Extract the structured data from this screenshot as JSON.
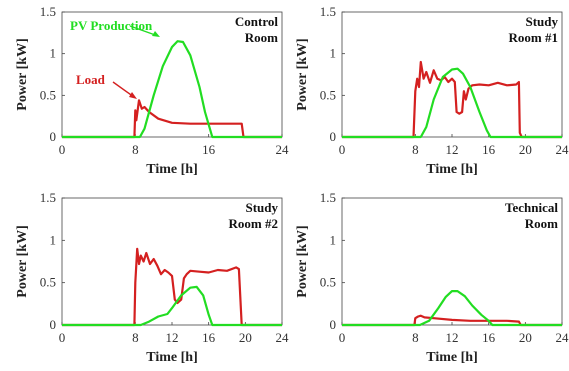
{
  "chart_data": [
    {
      "type": "line",
      "title": [
        "Control",
        "Room"
      ],
      "xlabel": "Time [h]",
      "ylabel": "Power [kW]",
      "xlim": [
        0,
        24
      ],
      "ylim": [
        0,
        1.5
      ],
      "xticks": [
        "0",
        "8",
        "16",
        "24"
      ],
      "yticks": [
        "0",
        "0.5",
        "1",
        "1.5"
      ],
      "annotations": [
        {
          "text": "PV Production",
          "color": "#22dd22",
          "series": "pv"
        },
        {
          "text": "Load",
          "color": "#d42020",
          "series": "load"
        }
      ],
      "series": [
        {
          "key": "load",
          "color": "#d42020",
          "x": [
            0,
            7.9,
            8.0,
            8.1,
            8.4,
            8.7,
            9.0,
            9.5,
            10.5,
            12,
            14,
            16,
            18,
            19.6,
            19.8,
            24
          ],
          "y": [
            0,
            0,
            0.32,
            0.2,
            0.44,
            0.34,
            0.36,
            0.3,
            0.22,
            0.17,
            0.16,
            0.16,
            0.16,
            0.16,
            0,
            0
          ]
        },
        {
          "key": "pv",
          "color": "#22dd22",
          "x": [
            0,
            8.5,
            9,
            10,
            11,
            12,
            12.6,
            13.2,
            14,
            15,
            15.6,
            16.4,
            24
          ],
          "y": [
            0,
            0,
            0.1,
            0.5,
            0.85,
            1.08,
            1.15,
            1.14,
            0.98,
            0.6,
            0.3,
            0,
            0
          ]
        }
      ]
    },
    {
      "type": "line",
      "title": [
        "Study",
        "Room #1"
      ],
      "xlabel": "Time [h]",
      "ylabel": "Power [kW]",
      "xlim": [
        0,
        24
      ],
      "ylim": [
        0,
        1.5
      ],
      "xticks": [
        "0",
        "8",
        "12",
        "16",
        "20",
        "24"
      ],
      "yticks": [
        "0",
        "0.5",
        "1",
        "1.5"
      ],
      "series": [
        {
          "key": "load",
          "color": "#d42020",
          "x": [
            0,
            7.8,
            8.0,
            8.2,
            8.4,
            8.6,
            8.9,
            9.2,
            9.6,
            10,
            10.4,
            10.8,
            11.2,
            11.6,
            12,
            12.3,
            12.5,
            12.8,
            13.1,
            13.3,
            13.5,
            13.8,
            14.2,
            15,
            16,
            17,
            18,
            19,
            19.3,
            19.4,
            19.6,
            24
          ],
          "y": [
            0,
            0,
            0.55,
            0.7,
            0.6,
            0.9,
            0.7,
            0.78,
            0.65,
            0.8,
            0.7,
            0.68,
            0.72,
            0.66,
            0.7,
            0.66,
            0.3,
            0.28,
            0.3,
            0.55,
            0.45,
            0.58,
            0.62,
            0.63,
            0.62,
            0.65,
            0.62,
            0.63,
            0.66,
            0.05,
            0,
            0
          ]
        },
        {
          "key": "pv",
          "color": "#22dd22",
          "x": [
            0,
            8.6,
            9.2,
            10,
            11,
            12,
            12.6,
            13.2,
            14,
            15,
            15.8,
            16.2,
            24
          ],
          "y": [
            0,
            0,
            0.12,
            0.45,
            0.72,
            0.81,
            0.82,
            0.76,
            0.6,
            0.3,
            0.08,
            0,
            0
          ]
        }
      ]
    },
    {
      "type": "line",
      "title": [
        "Study",
        "Room #2"
      ],
      "xlabel": "Time [h]",
      "ylabel": "Power [kW]",
      "xlim": [
        0,
        24
      ],
      "ylim": [
        0,
        1.5
      ],
      "xticks": [
        "0",
        "8",
        "12",
        "16",
        "20",
        "24"
      ],
      "yticks": [
        "0",
        "0.5",
        "1",
        "1.5"
      ],
      "series": [
        {
          "key": "load",
          "color": "#d42020",
          "x": [
            0,
            7.9,
            8.0,
            8.2,
            8.4,
            8.6,
            8.9,
            9.2,
            9.6,
            10,
            10.4,
            10.8,
            11.2,
            11.6,
            12,
            12.3,
            12.6,
            13.0,
            13.3,
            13.6,
            14,
            15,
            16,
            17,
            18,
            19,
            19.3,
            19.6,
            24
          ],
          "y": [
            0,
            0,
            0.5,
            0.9,
            0.72,
            0.82,
            0.75,
            0.85,
            0.72,
            0.78,
            0.7,
            0.6,
            0.65,
            0.62,
            0.58,
            0.3,
            0.26,
            0.3,
            0.55,
            0.6,
            0.64,
            0.63,
            0.62,
            0.65,
            0.64,
            0.68,
            0.66,
            0,
            0
          ]
        },
        {
          "key": "pv",
          "color": "#22dd22",
          "x": [
            0,
            8.6,
            9.5,
            10.5,
            11.5,
            12,
            13,
            14,
            14.7,
            15.4,
            16.0,
            16.4,
            24
          ],
          "y": [
            0,
            0,
            0.04,
            0.1,
            0.13,
            0.2,
            0.35,
            0.44,
            0.45,
            0.35,
            0.12,
            0,
            0
          ]
        }
      ]
    },
    {
      "type": "line",
      "title": [
        "Technical",
        "Room"
      ],
      "xlabel": "Time [h]",
      "ylabel": "Power [kW]",
      "xlim": [
        0,
        24
      ],
      "ylim": [
        0,
        1.5
      ],
      "xticks": [
        "0",
        "8",
        "12",
        "16",
        "20",
        "24"
      ],
      "yticks": [
        "0",
        "0.5",
        "1",
        "1.5"
      ],
      "series": [
        {
          "key": "load",
          "color": "#d42020",
          "x": [
            0,
            7.9,
            8.0,
            8.3,
            8.6,
            9.0,
            10,
            12,
            14,
            16,
            18,
            19.3,
            19.5,
            24
          ],
          "y": [
            0,
            0,
            0.08,
            0.1,
            0.11,
            0.09,
            0.08,
            0.06,
            0.05,
            0.05,
            0.05,
            0.04,
            0,
            0
          ]
        },
        {
          "key": "pv",
          "color": "#22dd22",
          "x": [
            0,
            8.5,
            9.5,
            10.5,
            11.3,
            12,
            12.6,
            13.4,
            14.2,
            15.2,
            16,
            16.4,
            24
          ],
          "y": [
            0,
            0,
            0.05,
            0.2,
            0.33,
            0.4,
            0.4,
            0.34,
            0.23,
            0.12,
            0.05,
            0,
            0
          ]
        }
      ]
    }
  ]
}
